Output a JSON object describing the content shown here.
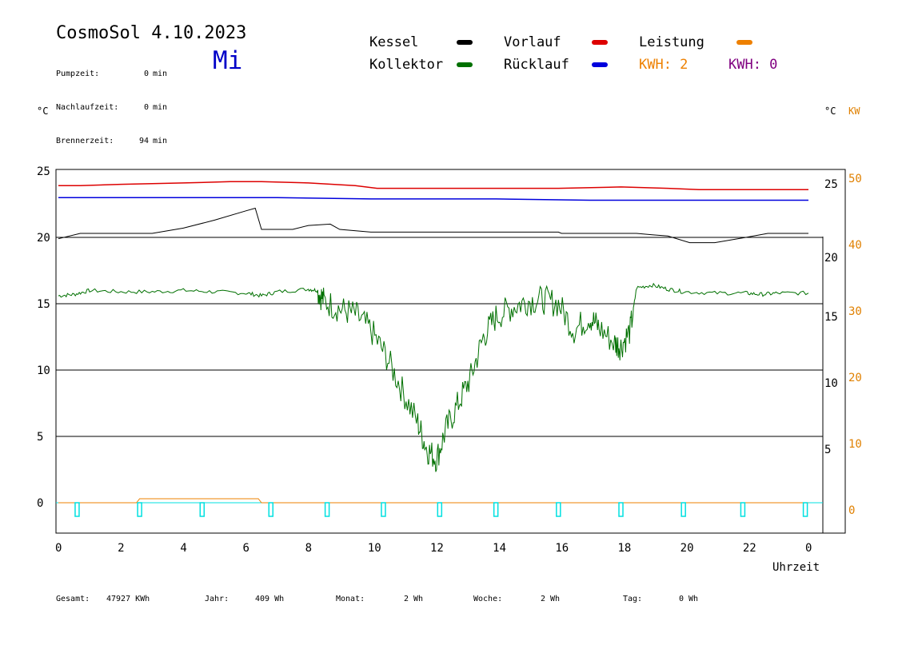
{
  "header": {
    "title": "CosmoSol 4.10.2023",
    "weekday": "Mi",
    "info": [
      {
        "label": "Pumpzeit:",
        "value": "0",
        "unit": "min"
      },
      {
        "label": "Nachlaufzeit:",
        "value": "0",
        "unit": "min"
      },
      {
        "label": "Brennerzeit:",
        "value": "94",
        "unit": "min"
      }
    ]
  },
  "legend": {
    "kessel": "Kessel",
    "vorlauf": "Vorlauf",
    "leistung": "Leistung",
    "kollektor": "Kollektor",
    "ruecklauf": "Rücklauf",
    "kwh1": "KWH: 2",
    "kwh2": "KWH: 0"
  },
  "footer": {
    "gesamt_label": "Gesamt:",
    "gesamt_value": "47927 KWh",
    "jahr_label": "Jahr:",
    "jahr_value": "409 Wh",
    "monat_label": "Monat:",
    "monat_value": "2 Wh",
    "woche_label": "Woche:",
    "woche_value": "2 Wh",
    "tag_label": "Tag:",
    "tag_value": "0 Wh"
  },
  "colors": {
    "kessel": "#000000",
    "vorlauf": "#dd0000",
    "ruecklauf": "#0000dd",
    "kollektor": "#007000",
    "leistung": "#ee8000",
    "kwh2": "#800080",
    "pump": "#00e0e0",
    "kw_axis": "#e08000",
    "weekday": "#0000c8"
  },
  "chart_data": {
    "type": "line",
    "xlabel": "Uhrzeit",
    "xlim": [
      0,
      24
    ],
    "x_ticks": [
      "0",
      "2",
      "4",
      "6",
      "8",
      "10",
      "12",
      "14",
      "16",
      "18",
      "20",
      "22",
      "0"
    ],
    "left_axis": {
      "unit": "°C",
      "ticks": [
        "25",
        "20",
        "15",
        "10",
        "5",
        "0"
      ]
    },
    "right_axis_c": {
      "unit": "°C",
      "ticks": [
        "25",
        "20",
        "15",
        "10",
        "5"
      ]
    },
    "right_axis_kw": {
      "unit": "KW",
      "ticks": [
        "50",
        "40",
        "30",
        "20",
        "10",
        "0"
      ]
    },
    "gridlines_c": [
      0,
      5,
      10,
      15,
      20
    ],
    "series": [
      {
        "name": "Vorlauf",
        "color": "#dd0000",
        "points": [
          [
            0,
            23.9
          ],
          [
            0.7,
            23.9
          ],
          [
            2,
            24.0
          ],
          [
            4,
            24.1
          ],
          [
            5.5,
            24.2
          ],
          [
            6.5,
            24.2
          ],
          [
            8,
            24.1
          ],
          [
            9.5,
            23.9
          ],
          [
            10.2,
            23.7
          ],
          [
            12,
            23.7
          ],
          [
            16,
            23.7
          ],
          [
            18,
            23.8
          ],
          [
            19.5,
            23.7
          ],
          [
            20.5,
            23.6
          ],
          [
            22,
            23.6
          ],
          [
            24,
            23.6
          ]
        ]
      },
      {
        "name": "Rücklauf",
        "color": "#0000dd",
        "points": [
          [
            0,
            23.0
          ],
          [
            5,
            23.0
          ],
          [
            7,
            23.0
          ],
          [
            10,
            22.9
          ],
          [
            14,
            22.9
          ],
          [
            17,
            22.8
          ],
          [
            20,
            22.8
          ],
          [
            22.5,
            22.8
          ],
          [
            24,
            22.8
          ]
        ]
      },
      {
        "name": "Kessel",
        "color": "#000000",
        "points": [
          [
            0,
            19.9
          ],
          [
            0.7,
            20.3
          ],
          [
            3,
            20.3
          ],
          [
            4,
            20.7
          ],
          [
            5,
            21.3
          ],
          [
            6,
            22.0
          ],
          [
            6.3,
            22.2
          ],
          [
            6.5,
            20.6
          ],
          [
            7.5,
            20.6
          ],
          [
            8,
            20.9
          ],
          [
            8.7,
            21.0
          ],
          [
            9,
            20.6
          ],
          [
            10,
            20.4
          ],
          [
            16,
            20.4
          ],
          [
            16.1,
            20.3
          ],
          [
            18.5,
            20.3
          ],
          [
            19,
            20.2
          ],
          [
            19.5,
            20.1
          ],
          [
            20.2,
            19.6
          ],
          [
            21,
            19.6
          ],
          [
            22,
            20.0
          ],
          [
            22.7,
            20.3
          ],
          [
            24,
            20.3
          ]
        ]
      },
      {
        "name": "Kollektor",
        "color": "#007000",
        "points": [
          [
            0,
            15.6
          ],
          [
            0.5,
            15.7
          ],
          [
            1,
            16.0
          ],
          [
            2,
            15.9
          ],
          [
            3,
            15.9
          ],
          [
            4,
            16.0
          ],
          [
            5,
            15.9
          ],
          [
            6,
            15.8
          ],
          [
            6.5,
            15.6
          ],
          [
            7,
            15.9
          ],
          [
            8,
            16.1
          ],
          [
            8.3,
            16.0
          ],
          [
            8.5,
            15.2
          ],
          [
            9,
            14.6
          ],
          [
            9.5,
            14.2
          ],
          [
            10,
            13.0
          ],
          [
            10.5,
            11.0
          ],
          [
            11,
            8.5
          ],
          [
            11.5,
            6.0
          ],
          [
            11.8,
            4.0
          ],
          [
            12.1,
            3.3
          ],
          [
            12.4,
            5.5
          ],
          [
            12.8,
            7.5
          ],
          [
            13.2,
            9.5
          ],
          [
            13.6,
            12.5
          ],
          [
            14,
            14.0
          ],
          [
            14.5,
            14.7
          ],
          [
            15,
            15.2
          ],
          [
            15.5,
            15.3
          ],
          [
            16,
            15.0
          ],
          [
            16.5,
            13.0
          ],
          [
            17,
            14.0
          ],
          [
            17.3,
            13.2
          ],
          [
            17.8,
            12.0
          ],
          [
            18,
            11.8
          ],
          [
            18.3,
            13.0
          ],
          [
            18.5,
            16.2
          ],
          [
            19,
            16.4
          ],
          [
            19.5,
            16.1
          ],
          [
            20,
            15.9
          ],
          [
            21,
            15.8
          ],
          [
            22,
            15.8
          ],
          [
            22.5,
            15.7
          ],
          [
            23,
            15.8
          ],
          [
            24,
            15.8
          ]
        ]
      },
      {
        "name": "Leistung",
        "color": "#ee8000",
        "points": [
          [
            0,
            0
          ],
          [
            2.5,
            0
          ],
          [
            2.6,
            0.3
          ],
          [
            6.4,
            0.3
          ],
          [
            6.5,
            0
          ],
          [
            24,
            0
          ]
        ]
      }
    ],
    "pump_markers": [
      0.6,
      2.6,
      4.6,
      6.8,
      8.6,
      10.4,
      12.2,
      14.0,
      16.0,
      18.0,
      20.0,
      21.9,
      23.9
    ]
  }
}
